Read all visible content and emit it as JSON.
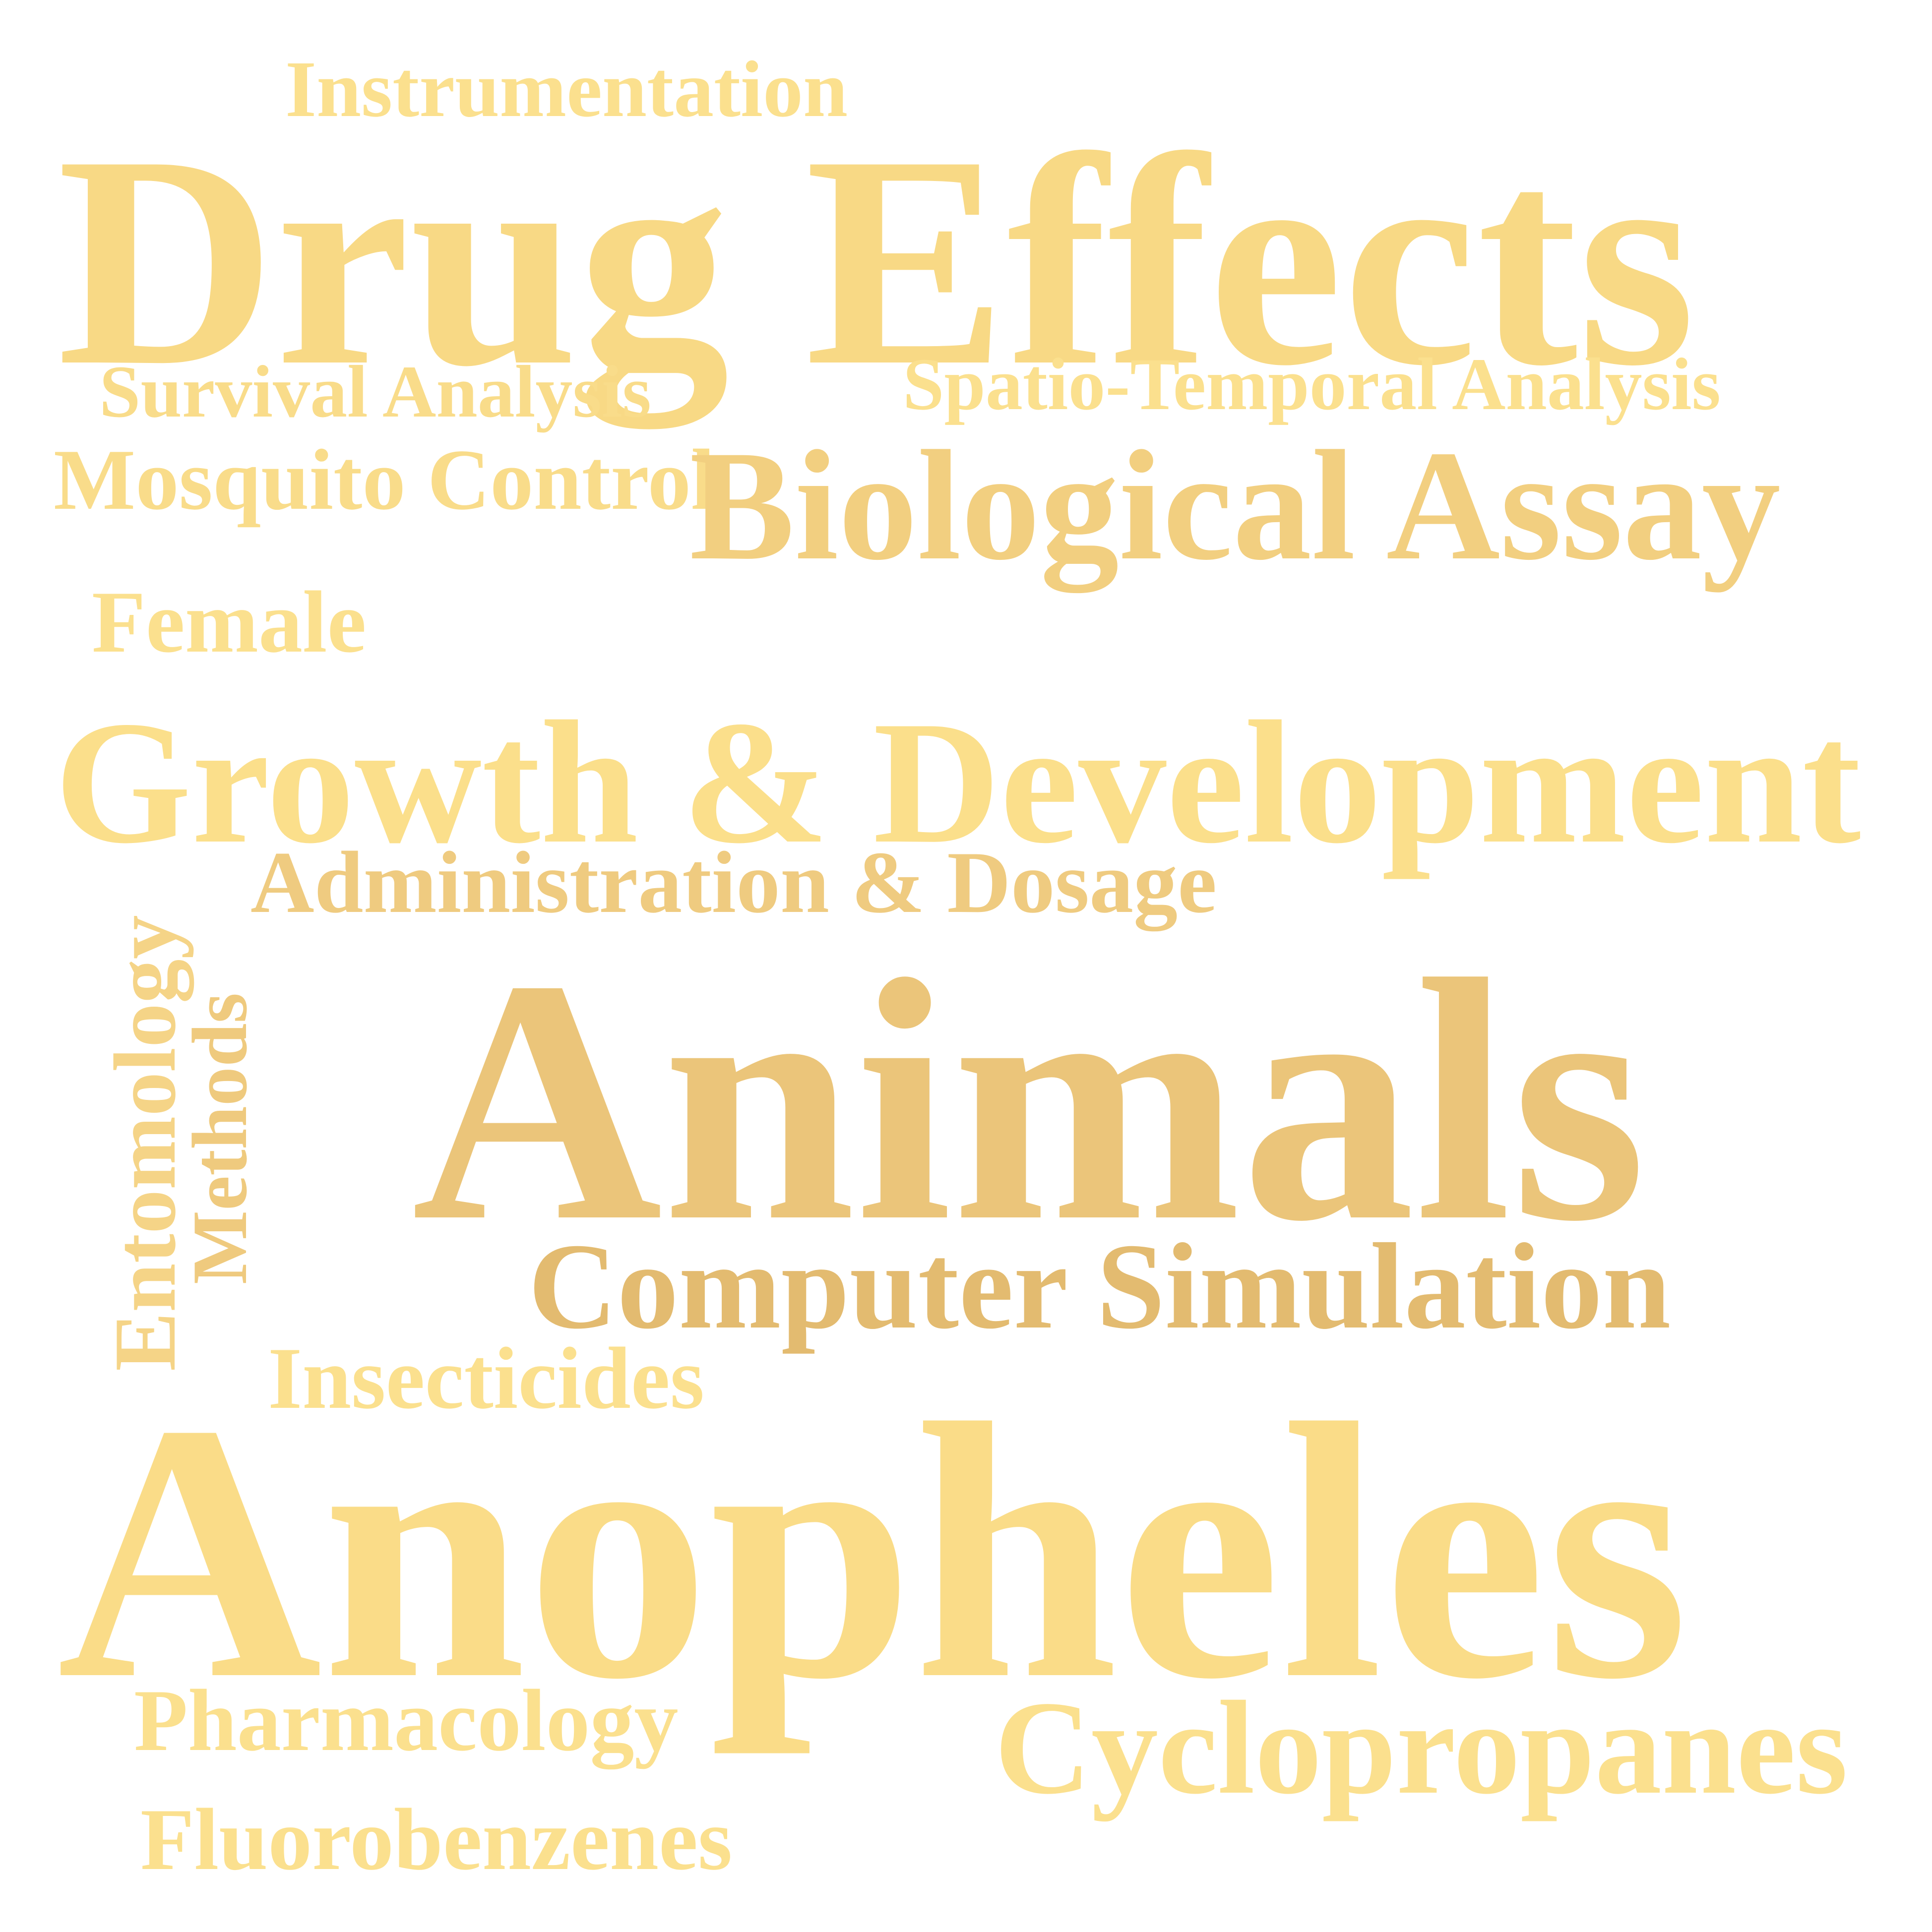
{
  "words": [
    {
      "key": "instrumentation",
      "text": "Instrumentation",
      "color": "#fbe08e"
    },
    {
      "key": "drug_effects",
      "text": "Drug Effects",
      "color": "#f8d985"
    },
    {
      "key": "survival_analysis",
      "text": "Survival Analysis",
      "color": "#f9dc8a"
    },
    {
      "key": "spatio_temporal_analysis",
      "text": "Spatio-Temporal Analysis",
      "color": "#fbe08e"
    },
    {
      "key": "mosquito_control",
      "text": "Mosquito Control",
      "color": "#f9dc8a"
    },
    {
      "key": "biological_assay",
      "text": "Biological Assay",
      "color": "#f2cf80"
    },
    {
      "key": "female",
      "text": "Female",
      "color": "#fbe08e"
    },
    {
      "key": "growth_development",
      "text": "Growth & Development",
      "color": "#fbdf8b"
    },
    {
      "key": "administration_dosage",
      "text": "Administration & Dosage",
      "color": "#efcb80"
    },
    {
      "key": "entomology",
      "text": "Entomology",
      "color": "#f5d487"
    },
    {
      "key": "methods",
      "text": "Methods",
      "color": "#efca7e"
    },
    {
      "key": "animals",
      "text": "Animals",
      "color": "#ebc57a"
    },
    {
      "key": "computer_simulation",
      "text": "Computer Simulation",
      "color": "#e3bb70"
    },
    {
      "key": "insecticides",
      "text": "Insecticides",
      "color": "#fbe08e"
    },
    {
      "key": "anopheles",
      "text": "Anopheles",
      "color": "#fadc88"
    },
    {
      "key": "pharmacology",
      "text": "Pharmacology",
      "color": "#fbe08e"
    },
    {
      "key": "cyclopropanes",
      "text": "Cyclopropanes",
      "color": "#fbe08e"
    },
    {
      "key": "fluorobenzenes",
      "text": "Fluorobenzenes",
      "color": "#fbe08e"
    }
  ]
}
